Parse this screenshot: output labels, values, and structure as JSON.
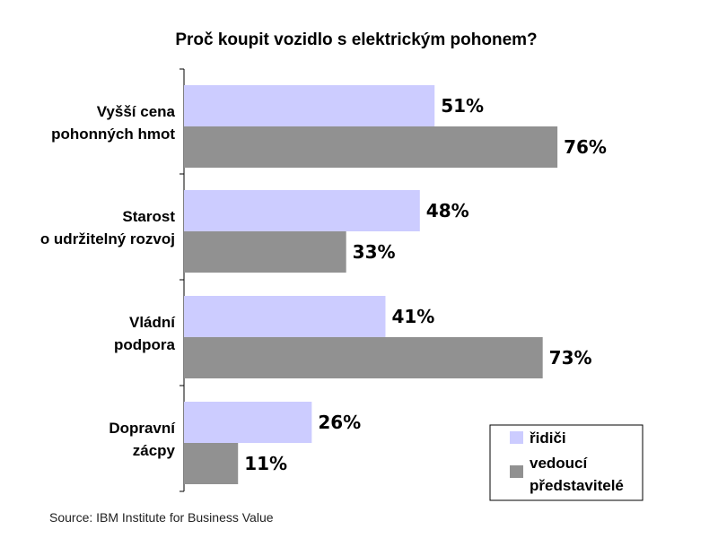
{
  "chart_data": {
    "type": "bar",
    "orientation": "horizontal",
    "title": "Proč koupit vozidlo s elektrickým pohonem?",
    "categories": [
      [
        "Vyšší cena",
        "pohonných hmot"
      ],
      [
        "Starost",
        "o udržitelný rozvoj"
      ],
      [
        "Vládní",
        "podpora"
      ],
      [
        "Dopravní",
        "zácpy"
      ]
    ],
    "series": [
      {
        "name": "řidiči",
        "values": [
          51,
          48,
          41,
          26
        ],
        "labels": [
          "51%",
          "48%",
          "41%",
          "26%"
        ],
        "color": "#ccccff"
      },
      {
        "name": "vedoucí představitelé",
        "legend_lines": [
          "vedoucí",
          "představitelé"
        ],
        "values": [
          76,
          33,
          73,
          11
        ],
        "labels": [
          "76%",
          "33%",
          "73%",
          "11%"
        ],
        "color": "#919191"
      }
    ],
    "xlim": [
      0,
      100
    ],
    "grid": false,
    "legend_position": "bottom-right",
    "source": "Source:  IBM Institute for Business Value"
  }
}
